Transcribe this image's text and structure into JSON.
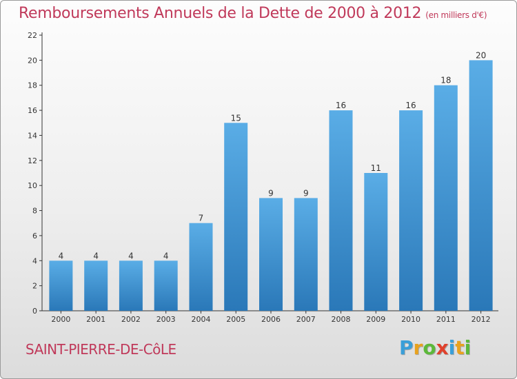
{
  "header": {
    "title": "Remboursements Annuels de la Dette de 2000 à 2012",
    "subtitle": "(en milliers d'€)"
  },
  "footer": {
    "commune": "SAINT-PIERRE-DE-CôLE",
    "logo_letters": [
      "P",
      "r",
      "o",
      "x",
      "i",
      "t",
      "i"
    ],
    "logo_colors": [
      "#3a9fd8",
      "#e8a21e",
      "#5cb83a",
      "#e0412c",
      "#3a9fd8",
      "#e8a21e",
      "#5cb83a"
    ]
  },
  "colors": {
    "bar_top": "#5aade6",
    "bar_bottom": "#2a78b8",
    "axis": "#333333",
    "text_accent": "#c0395a"
  },
  "chart_data": {
    "type": "bar",
    "title": "Remboursements Annuels de la Dette de 2000 à 2012",
    "subtitle": "(en milliers d'€)",
    "categories": [
      "2000",
      "2001",
      "2002",
      "2003",
      "2004",
      "2005",
      "2006",
      "2007",
      "2008",
      "2009",
      "2010",
      "2011",
      "2012"
    ],
    "values": [
      4,
      4,
      4,
      4,
      7,
      15,
      9,
      9,
      16,
      11,
      16,
      18,
      20
    ],
    "ylim": [
      0,
      22
    ],
    "yticks": [
      0,
      2,
      4,
      6,
      8,
      10,
      12,
      14,
      16,
      18,
      20,
      22
    ],
    "grid": false,
    "data_labels": true
  }
}
